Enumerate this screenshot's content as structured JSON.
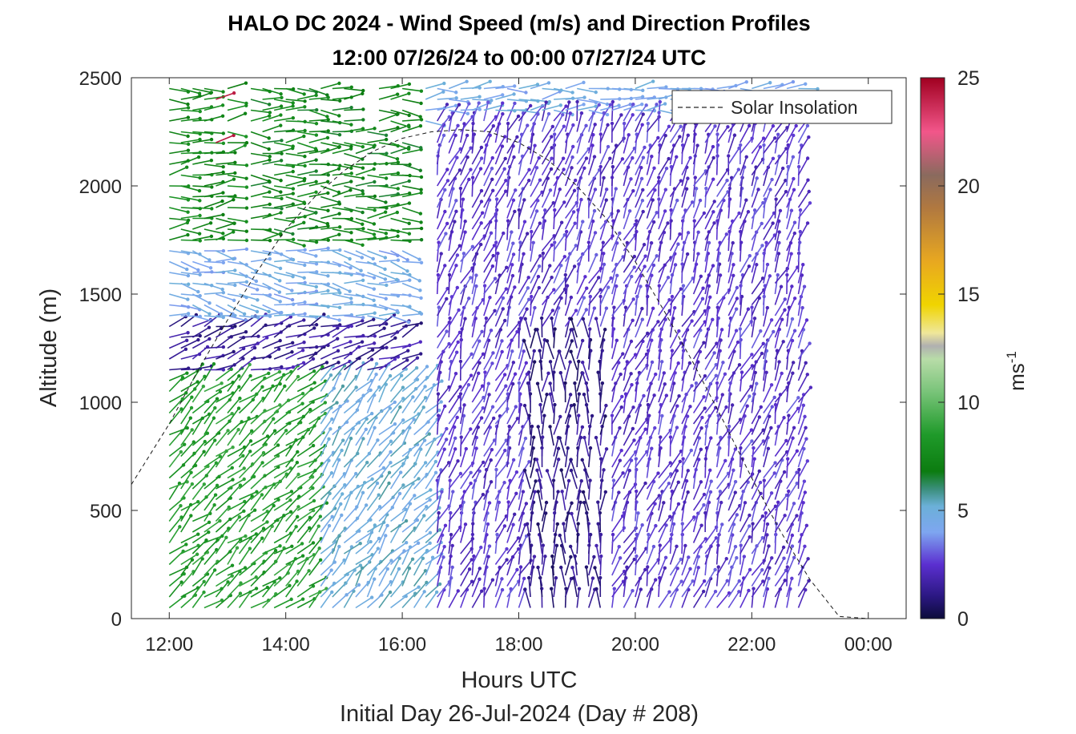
{
  "chart_data": {
    "type": "wind-barb profile (time-height)",
    "title_line1": "HALO DC 2024 - Wind Speed (m/s) and Direction Profiles",
    "title_line2": "12:00 07/26/24 to 00:00 07/27/24  UTC",
    "xlabel": "Hours UTC",
    "xlabel2": "Initial Day 26-Jul-2024 (Day # 208)",
    "ylabel": "Altitude (m)",
    "colorbar_label": "ms",
    "colorbar_label_exponent": "-1",
    "x_tick_labels": [
      "12:00",
      "14:00",
      "16:00",
      "18:00",
      "20:00",
      "22:00",
      "00:00"
    ],
    "x_ticks_hours": [
      12,
      14,
      16,
      18,
      20,
      22,
      24
    ],
    "xlim_hours": [
      11.35,
      24.65
    ],
    "y_ticks": [
      0,
      500,
      1000,
      1500,
      2000,
      2500
    ],
    "ylim": [
      0,
      2500
    ],
    "colorbar_ticks": [
      0,
      5,
      10,
      15,
      20,
      25
    ],
    "colorbar_range": [
      0,
      25
    ],
    "legend": {
      "entry": "Solar Insolation",
      "position": "top-right"
    },
    "colormap_stops": [
      {
        "v": 0,
        "c": "#0c0c3a"
      },
      {
        "v": 1,
        "c": "#2a1780"
      },
      {
        "v": 2.5,
        "c": "#5b2fd0"
      },
      {
        "v": 4,
        "c": "#7ea6f0"
      },
      {
        "v": 5.2,
        "c": "#6bb0d8"
      },
      {
        "v": 6,
        "c": "#3a8e7a"
      },
      {
        "v": 6.8,
        "c": "#0c7c10"
      },
      {
        "v": 8.5,
        "c": "#1f9a2a"
      },
      {
        "v": 10.5,
        "c": "#7ac47a"
      },
      {
        "v": 12,
        "c": "#b8dca8"
      },
      {
        "v": 12.6,
        "c": "#b0b0b0"
      },
      {
        "v": 13.2,
        "c": "#efe79a"
      },
      {
        "v": 14.5,
        "c": "#f0d400"
      },
      {
        "v": 16.5,
        "c": "#e8a820"
      },
      {
        "v": 19,
        "c": "#b07840"
      },
      {
        "v": 20.5,
        "c": "#8a6a5e"
      },
      {
        "v": 22.5,
        "c": "#f2568a"
      },
      {
        "v": 25,
        "c": "#a00020"
      }
    ],
    "solar_insolation_curve": {
      "hours": [
        11.35,
        12.0,
        12.5,
        13.0,
        13.5,
        14.0,
        14.5,
        15.0,
        15.5,
        16.0,
        16.5,
        17.0,
        17.5,
        18.0,
        18.5,
        19.0,
        19.5,
        20.0,
        20.5,
        21.0,
        21.5,
        22.0,
        22.5,
        23.0,
        23.5,
        24.0,
        24.5,
        24.65
      ],
      "altitude_m": [
        620,
        900,
        1150,
        1380,
        1600,
        1800,
        1950,
        2070,
        2160,
        2220,
        2250,
        2260,
        2250,
        2200,
        2120,
        2000,
        1850,
        1650,
        1420,
        1180,
        920,
        650,
        400,
        180,
        10,
        0,
        0,
        0
      ]
    },
    "wind_profile_regimes": [
      {
        "hours": [
          12.0,
          13.0
        ],
        "altitude_m": [
          1700,
          2500
        ],
        "speed_ms": 7.5,
        "direction_deg": 265,
        "note": "green westerly aloft"
      },
      {
        "hours": [
          13.0,
          16.0
        ],
        "altitude_m": [
          1700,
          2500
        ],
        "speed_ms": 7.2,
        "direction_deg": 270
      },
      {
        "hours": [
          16.0,
          23.0
        ],
        "altitude_m": [
          2300,
          2500
        ],
        "speed_ms": 4.5,
        "direction_deg": 265
      },
      {
        "hours": [
          12.0,
          16.0
        ],
        "altitude_m": [
          1350,
          1700
        ],
        "speed_ms": 4.5,
        "direction_deg": 280
      },
      {
        "hours": [
          12.0,
          16.0
        ],
        "altitude_m": [
          1100,
          1350
        ],
        "speed_ms": 1.5,
        "direction_deg": 250
      },
      {
        "hours": [
          12.0,
          14.5
        ],
        "altitude_m": [
          0,
          1100
        ],
        "speed_ms": 8.5,
        "direction_deg": 230
      },
      {
        "hours": [
          14.5,
          16.5
        ],
        "altitude_m": [
          0,
          1100
        ],
        "speed_ms": 5.0,
        "direction_deg": 220
      },
      {
        "hours": [
          16.5,
          23.0
        ],
        "altitude_m": [
          0,
          2300
        ],
        "speed_ms": 2.5,
        "direction_deg": 200
      },
      {
        "hours": [
          18.0,
          19.5
        ],
        "altitude_m": [
          0,
          1300
        ],
        "speed_ms": 1.2,
        "direction_deg": 180
      },
      {
        "hours": [
          12.7,
          12.8
        ],
        "altitude_m": [
          2200,
          2450
        ],
        "speed_ms": 24.0,
        "direction_deg": 240,
        "note": "isolated high-speed barbs"
      }
    ],
    "data_gaps": [
      {
        "hours": [
          13.1,
          13.2
        ],
        "altitude_m": [
          1700,
          2500
        ]
      },
      {
        "hours": [
          15.1,
          15.5
        ],
        "altitude_m": [
          2280,
          2500
        ]
      },
      {
        "hours": [
          16.1,
          16.2
        ],
        "altitude_m": [
          1850,
          2500
        ]
      }
    ]
  }
}
